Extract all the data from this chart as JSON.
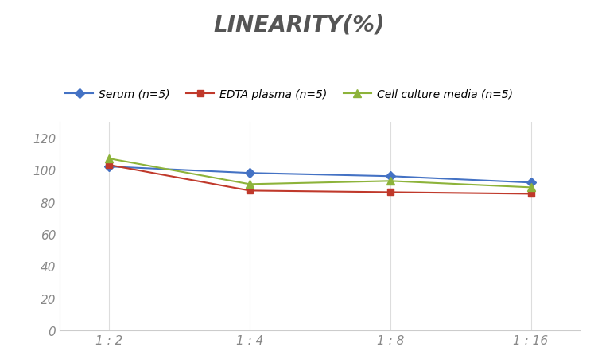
{
  "title": "LINEARITY(%)",
  "title_fontsize": 20,
  "title_style": "italic",
  "title_weight": "bold",
  "title_color": "#555555",
  "x_labels": [
    "1 : 2",
    "1 : 4",
    "1 : 8",
    "1 : 16"
  ],
  "x_values": [
    0,
    1,
    2,
    3
  ],
  "series": [
    {
      "label": "Serum (n=5)",
      "values": [
        102,
        98,
        96,
        92
      ],
      "color": "#4472C4",
      "marker": "D",
      "markersize": 6,
      "linewidth": 1.5
    },
    {
      "label": "EDTA plasma (n=5)",
      "values": [
        103,
        87,
        86,
        85
      ],
      "color": "#C0392B",
      "marker": "s",
      "markersize": 6,
      "linewidth": 1.5
    },
    {
      "label": "Cell culture media (n=5)",
      "values": [
        107,
        91,
        93,
        89
      ],
      "color": "#8DB33A",
      "marker": "^",
      "markersize": 7,
      "linewidth": 1.5
    }
  ],
  "ylim": [
    0,
    130
  ],
  "yticks": [
    0,
    20,
    40,
    60,
    80,
    100,
    120
  ],
  "grid_color": "#DDDDDD",
  "background_color": "#FFFFFF",
  "legend_fontsize": 10,
  "tick_fontsize": 11,
  "tick_label_color": "#888888",
  "spine_color": "#CCCCCC"
}
